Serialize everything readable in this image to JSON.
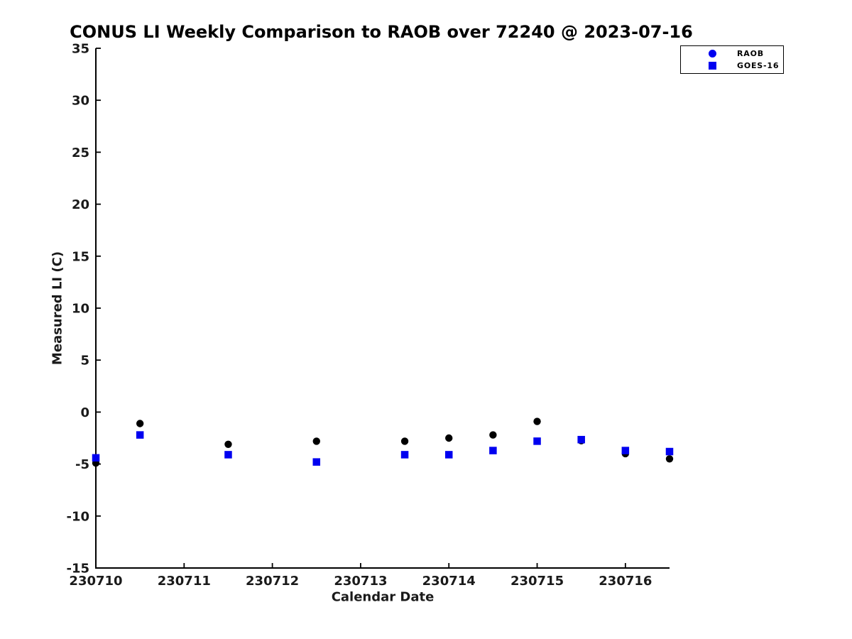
{
  "chart_data": {
    "type": "scatter",
    "title": "CONUS LI Weekly Comparison to RAOB over 72240 @ 2023-07-16",
    "xlabel": "Calendar Date",
    "ylabel": "Measured LI (C)",
    "xlim": [
      230710,
      230716.5
    ],
    "ylim": [
      -15,
      35
    ],
    "grid": false,
    "xticks": {
      "values": [
        230710,
        230711,
        230712,
        230713,
        230714,
        230715,
        230716
      ],
      "labels": [
        "230710",
        "230711",
        "230712",
        "230713",
        "230714",
        "230715",
        "230716"
      ]
    },
    "yticks": {
      "values": [
        35,
        30,
        25,
        20,
        15,
        10,
        5,
        0,
        -5,
        -10,
        -15
      ],
      "labels": [
        "35",
        "30",
        "25",
        "20",
        "15",
        "10",
        "5",
        "0",
        "-5",
        "-10",
        "-15"
      ]
    },
    "legend": {
      "position": "top-right",
      "marker_color": "#0000f0",
      "entries": [
        {
          "label": "RAOB",
          "marker": "circle"
        },
        {
          "label": "GOES-16",
          "marker": "square"
        }
      ]
    },
    "series": [
      {
        "name": "RAOB",
        "marker": "circle",
        "color": "#000000",
        "x": [
          230710.0,
          230710.5,
          230711.5,
          230712.5,
          230713.5,
          230714.0,
          230714.5,
          230715.0,
          230715.5,
          230716.0,
          230716.5
        ],
        "y": [
          -4.9,
          -1.1,
          -3.1,
          -2.8,
          -2.8,
          -2.5,
          -2.2,
          -0.9,
          -2.75,
          -4.0,
          -4.5
        ]
      },
      {
        "name": "GOES-16",
        "marker": "square",
        "color": "#0000f0",
        "x": [
          230710.0,
          230710.5,
          230711.5,
          230712.5,
          230713.5,
          230714.0,
          230714.5,
          230715.0,
          230715.5,
          230716.0,
          230716.5
        ],
        "y": [
          -4.4,
          -2.2,
          -4.1,
          -4.8,
          -4.1,
          -4.1,
          -3.7,
          -2.8,
          -2.65,
          -3.7,
          -3.8
        ]
      }
    ]
  }
}
